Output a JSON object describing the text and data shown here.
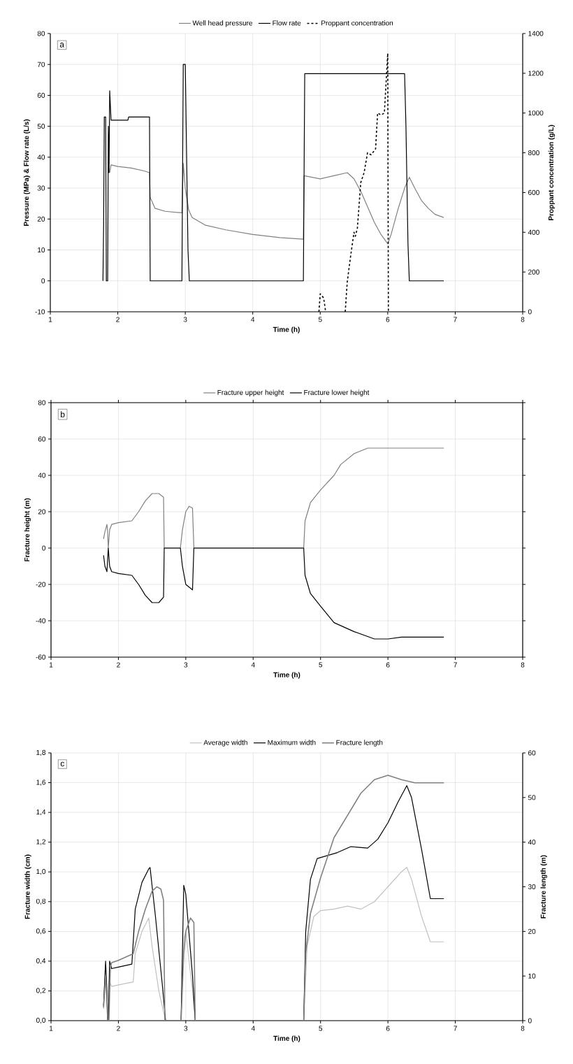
{
  "chart_data": [
    {
      "type": "line",
      "xlabel": "Time (h)",
      "ylabel": "Pressure (MPa) & Flow rate (L/s)",
      "y2label": "Proppant concentration (g/L)",
      "annotations": [
        "a"
      ],
      "xlim": [
        1,
        8
      ],
      "xticks": [
        1,
        2,
        3,
        4,
        5,
        6,
        7,
        8
      ],
      "ylim": [
        -10,
        80
      ],
      "yticks": [
        -10,
        0,
        10,
        20,
        30,
        40,
        50,
        60,
        70,
        80
      ],
      "y2lim": [
        0,
        1400
      ],
      "y2ticks": [
        0,
        200,
        400,
        600,
        800,
        1000,
        1200,
        1400
      ],
      "grid": true,
      "legend": "top",
      "series": [
        {
          "name": "Well head pressure",
          "color": "#808080",
          "x": [
            1.88,
            1.9,
            2.0,
            2.2,
            2.4,
            2.47,
            2.48,
            2.55,
            2.7,
            2.95,
            2.97,
            3.0,
            3.05,
            3.1,
            3.3,
            3.6,
            4.0,
            4.4,
            4.75,
            4.76,
            5.0,
            5.2,
            5.4,
            5.5,
            5.6,
            5.7,
            5.8,
            5.9,
            6.0,
            6.05,
            6.15,
            6.25,
            6.32,
            6.4,
            6.5,
            6.6,
            6.7,
            6.83
          ],
          "values": [
            35,
            37.5,
            37,
            36.5,
            35.5,
            35,
            27,
            23.5,
            22.5,
            22,
            38,
            30,
            23,
            20.5,
            18,
            16.5,
            15,
            14,
            13.5,
            34,
            33,
            34,
            35,
            33,
            29,
            24,
            19,
            15,
            12,
            15,
            23,
            30,
            33.5,
            30,
            26,
            23.5,
            21.5,
            20.5
          ]
        },
        {
          "name": "Flow rate",
          "color": "#000000",
          "x": [
            1.78,
            1.79,
            1.8,
            1.82,
            1.83,
            1.85,
            1.86,
            1.87,
            1.88,
            1.9,
            2.15,
            2.16,
            2.2,
            2.47,
            2.48,
            2.95,
            2.97,
            3.0,
            3.02,
            3.04,
            3.06,
            4.75,
            4.77,
            6.25,
            6.27,
            6.3,
            6.32,
            6.83
          ],
          "values": [
            0,
            18,
            53,
            53,
            0,
            0,
            50,
            35,
            61.5,
            52,
            52,
            53,
            53,
            53,
            0,
            0,
            70,
            70,
            40,
            10,
            0,
            0,
            67,
            67,
            50,
            12,
            0,
            0
          ]
        },
        {
          "name": "Proppant concentration",
          "color": "#000000",
          "line_style": "dashed",
          "axis": "y2",
          "x": [
            4.98,
            5.0,
            5.05,
            5.08,
            5.2,
            5.37,
            5.4,
            5.45,
            5.5,
            5.52,
            5.55,
            5.6,
            5.65,
            5.7,
            5.75,
            5.8,
            5.82,
            5.85,
            5.9,
            5.95,
            6.0,
            6.01
          ],
          "values": [
            0,
            90,
            70,
            0,
            null,
            0,
            150,
            280,
            400,
            380,
            420,
            650,
            700,
            800,
            790,
            810,
            820,
            1000,
            990,
            1000,
            1300,
            0
          ]
        }
      ]
    },
    {
      "type": "line",
      "xlabel": "Time (h)",
      "ylabel": "Fracture height (m)",
      "annotations": [
        "b"
      ],
      "xlim": [
        1,
        8
      ],
      "xticks": [
        1,
        2,
        3,
        4,
        5,
        6,
        7,
        8
      ],
      "ylim": [
        -60,
        80
      ],
      "yticks": [
        -60,
        -40,
        -20,
        0,
        20,
        40,
        60,
        80
      ],
      "grid": true,
      "legend": "top",
      "series": [
        {
          "name": "Fracture upper height",
          "color": "#808080",
          "x": [
            1.78,
            1.8,
            1.83,
            1.84,
            1.85,
            1.87,
            1.9,
            2.0,
            2.2,
            2.3,
            2.4,
            2.5,
            2.6,
            2.67,
            2.68,
            2.92,
            2.95,
            3.0,
            3.05,
            3.1,
            3.12,
            4.75,
            4.77,
            4.85,
            5.0,
            5.2,
            5.3,
            5.5,
            5.7,
            6.0,
            6.2,
            6.5,
            6.83
          ],
          "values": [
            5,
            9,
            13,
            9,
            0,
            10,
            13,
            14,
            15,
            20,
            26,
            30,
            30,
            28,
            0,
            0,
            10,
            20,
            23,
            22,
            0,
            0,
            15,
            25,
            32,
            40,
            46,
            52,
            55,
            55,
            55,
            55,
            55
          ]
        },
        {
          "name": "Fracture lower height",
          "color": "#000000",
          "x": [
            1.78,
            1.8,
            1.83,
            1.85,
            1.87,
            1.9,
            2.0,
            2.2,
            2.3,
            2.4,
            2.5,
            2.6,
            2.67,
            2.68,
            2.92,
            2.95,
            3.0,
            3.1,
            3.12,
            4.75,
            4.77,
            4.85,
            5.0,
            5.2,
            5.5,
            5.8,
            6.0,
            6.2,
            6.83
          ],
          "values": [
            -4,
            -10,
            -13,
            0,
            -10,
            -13,
            -14,
            -15,
            -20,
            -26,
            -30,
            -30,
            -27,
            0,
            0,
            -10,
            -20,
            -23,
            0,
            0,
            -15,
            -25,
            -32,
            -41,
            -46,
            -50,
            -50,
            -49,
            -49
          ]
        }
      ]
    },
    {
      "type": "line",
      "xlabel": "Time (h)",
      "ylabel": "Fracture width (cm)",
      "y2label": "Fracture length (m)",
      "annotations": [
        "c"
      ],
      "xlim": [
        1,
        8
      ],
      "xticks": [
        1,
        2,
        3,
        4,
        5,
        6,
        7,
        8
      ],
      "ylim": [
        0,
        1.8
      ],
      "yticks": [
        {
          "value": 0,
          "label": "0,0"
        },
        {
          "value": 0.2,
          "label": "0,2"
        },
        {
          "value": 0.4,
          "label": "0,4"
        },
        {
          "value": 0.6,
          "label": "0,6"
        },
        {
          "value": 0.8,
          "label": "0,8"
        },
        {
          "value": 1.0,
          "label": "1,0"
        },
        {
          "value": 1.2,
          "label": "1,2"
        },
        {
          "value": 1.4,
          "label": "1,4"
        },
        {
          "value": 1.6,
          "label": "1,6"
        },
        {
          "value": 1.8,
          "label": "1,8"
        }
      ],
      "y2lim": [
        0,
        60
      ],
      "y2ticks": [
        0,
        10,
        20,
        30,
        40,
        50,
        60
      ],
      "grid": true,
      "legend": "top",
      "series": [
        {
          "name": "Average width",
          "color": "#c0c0c0",
          "x": [
            1.78,
            1.8,
            1.82,
            1.84,
            1.86,
            1.9,
            2.0,
            2.22,
            2.25,
            2.35,
            2.45,
            2.5,
            2.6,
            2.7,
            2.93,
            2.97,
            3.0,
            3.1,
            3.14,
            4.75,
            4.8,
            4.9,
            5.0,
            5.2,
            5.4,
            5.6,
            5.8,
            6.0,
            6.2,
            6.28,
            6.35,
            6.5,
            6.63,
            6.83
          ],
          "values": [
            0.08,
            0.3,
            0.2,
            0.0,
            0.27,
            0.23,
            0.24,
            0.26,
            0.45,
            0.6,
            0.69,
            0.5,
            0.2,
            0,
            0,
            0.55,
            0.6,
            0.2,
            0,
            0,
            0.5,
            0.7,
            0.74,
            0.75,
            0.77,
            0.75,
            0.8,
            0.9,
            1.0,
            1.03,
            0.95,
            0.7,
            0.53,
            0.53
          ]
        },
        {
          "name": "Maximum width",
          "color": "#000000",
          "x": [
            1.78,
            1.81,
            1.83,
            1.84,
            1.85,
            1.87,
            1.9,
            2.0,
            2.2,
            2.25,
            2.35,
            2.45,
            2.47,
            2.55,
            2.65,
            2.7,
            2.93,
            2.97,
            3.0,
            3.1,
            3.14,
            4.75,
            4.78,
            4.85,
            4.95,
            5.1,
            5.25,
            5.45,
            5.7,
            5.85,
            6.0,
            6.15,
            6.28,
            6.35,
            6.5,
            6.63,
            6.83
          ],
          "values": [
            0.1,
            0.4,
            0.2,
            0,
            0,
            0.4,
            0.35,
            0.36,
            0.38,
            0.75,
            0.93,
            1.02,
            1.03,
            0.7,
            0.25,
            0,
            0,
            0.91,
            0.85,
            0.3,
            0,
            0,
            0.6,
            0.95,
            1.09,
            1.11,
            1.13,
            1.17,
            1.16,
            1.22,
            1.33,
            1.47,
            1.58,
            1.5,
            1.15,
            0.82,
            0.82
          ]
        },
        {
          "name": "Fracture length",
          "color": "#808080",
          "axis": "y2",
          "x": [
            1.78,
            1.81,
            1.83,
            1.84,
            1.86,
            1.88,
            1.9,
            2.0,
            2.22,
            2.3,
            2.4,
            2.5,
            2.57,
            2.63,
            2.67,
            2.69,
            2.93,
            2.97,
            3.0,
            3.07,
            3.12,
            3.14,
            4.75,
            4.78,
            4.85,
            5.0,
            5.2,
            5.4,
            5.6,
            5.8,
            6.0,
            6.2,
            6.4,
            6.83
          ],
          "values": [
            3,
            10,
            5,
            0,
            0,
            12,
            13,
            13.5,
            15,
            20,
            25,
            29,
            30,
            29.5,
            27,
            0,
            0,
            15,
            20,
            23,
            22,
            0,
            0,
            15,
            24,
            32,
            41,
            46,
            51,
            54,
            55,
            54,
            53.3,
            53.3
          ]
        }
      ]
    }
  ]
}
